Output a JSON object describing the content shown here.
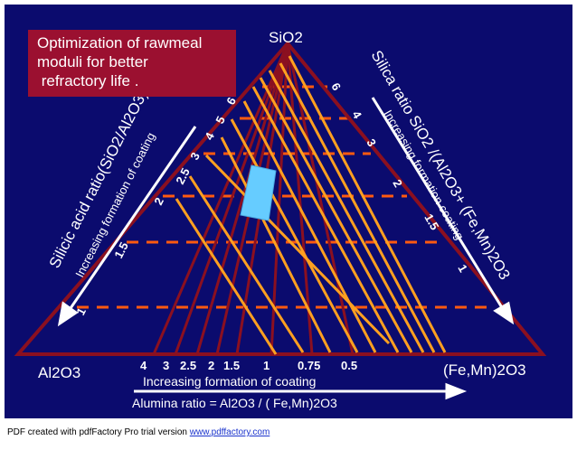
{
  "title_lines": [
    "Optimization of rawmeal",
    "moduli for better",
    " refractory life ."
  ],
  "apex_top": "SiO2",
  "apex_left": "Al2O3",
  "apex_right": "(Fe,Mn)2O3",
  "left_side": {
    "main_label": "Silicic acid ratio(SiO2/Al2O3)",
    "sub_label": "Increasing formation of coating",
    "ticks": [
      "1",
      "1.5",
      "2",
      "2.5",
      "3",
      "4",
      "5",
      "6"
    ]
  },
  "right_side": {
    "main_label": "Silica ratio SiO2 /(Al2O3+ (Fe,Mn)2O3",
    "sub_label": "Increasing formation  coating",
    "ticks": [
      "6",
      "4",
      "3",
      "2",
      "1.5",
      "1"
    ]
  },
  "bottom": {
    "ticks": [
      "4",
      "3",
      "2.5",
      "2",
      "1.5",
      "1",
      "0.75",
      "0.5"
    ],
    "sub_label": "Increasing formation of coating",
    "main_label": "Alumina ratio = Al2O3 / ( Fe,Mn)2O3"
  },
  "footer": {
    "text": "PDF created with pdfFactory Pro trial version ",
    "link": "www.pdffactory.com"
  },
  "colors": {
    "background": "#0b0b6e",
    "triangle": "#8b1020",
    "orange_lines": "#ffa020",
    "dash_lines": "#ff5a10",
    "optimum_zone": "#66ccff",
    "title_box": "#9b1030"
  }
}
